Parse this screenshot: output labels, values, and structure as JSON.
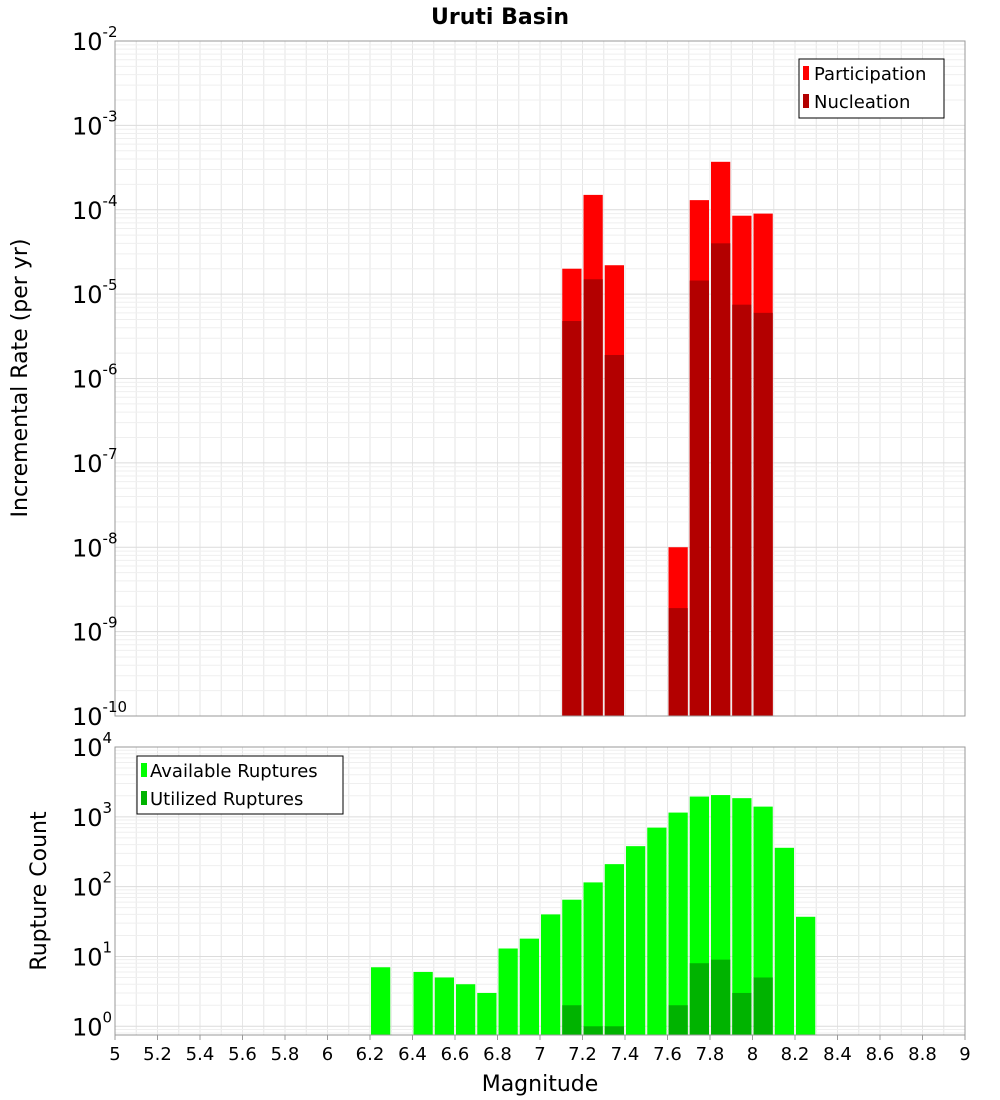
{
  "title": "Uruti Basin",
  "chart_data": [
    {
      "type": "bar",
      "ylabel": "Incremental Rate (per yr)",
      "yscale": "log",
      "ylim": [
        1e-10,
        0.01
      ],
      "xlim": [
        5,
        9
      ],
      "grid": true,
      "legend_position": "top-right",
      "y_ticks": [
        {
          "base": "10",
          "exp": "-10"
        },
        {
          "base": "10",
          "exp": "-9"
        },
        {
          "base": "10",
          "exp": "-8"
        },
        {
          "base": "10",
          "exp": "-7"
        },
        {
          "base": "10",
          "exp": "-6"
        },
        {
          "base": "10",
          "exp": "-5"
        },
        {
          "base": "10",
          "exp": "-4"
        },
        {
          "base": "10",
          "exp": "-3"
        },
        {
          "base": "10",
          "exp": "-2"
        }
      ],
      "series": [
        {
          "name": "Participation",
          "color": "#ff0000",
          "x": [
            7.15,
            7.25,
            7.35,
            7.65,
            7.75,
            7.85,
            7.95,
            8.05
          ],
          "values": [
            2e-05,
            0.00015,
            2.2e-05,
            1e-08,
            0.00013,
            0.00037,
            8.5e-05,
            9e-05
          ]
        },
        {
          "name": "Nucleation",
          "color": "#b30000",
          "x": [
            7.15,
            7.25,
            7.35,
            7.65,
            7.75,
            7.85,
            7.95,
            8.05
          ],
          "values": [
            4.8e-06,
            1.5e-05,
            1.9e-06,
            1.9e-09,
            1.45e-05,
            4e-05,
            7.5e-06,
            6e-06
          ]
        }
      ]
    },
    {
      "type": "bar",
      "xlabel": "Magnitude",
      "ylabel": "Rupture Count",
      "yscale": "log",
      "ylim": [
        0.75,
        10000
      ],
      "xlim": [
        5,
        9
      ],
      "grid": true,
      "legend_position": "top-left",
      "y_ticks": [
        {
          "base": "10",
          "exp": "0"
        },
        {
          "base": "10",
          "exp": "1"
        },
        {
          "base": "10",
          "exp": "2"
        },
        {
          "base": "10",
          "exp": "3"
        },
        {
          "base": "10",
          "exp": "4"
        }
      ],
      "x_ticks": [
        "5",
        "5.2",
        "5.4",
        "5.6",
        "5.8",
        "6",
        "6.2",
        "6.4",
        "6.6",
        "6.8",
        "7",
        "7.2",
        "7.4",
        "7.6",
        "7.8",
        "8",
        "8.2",
        "8.4",
        "8.6",
        "8.8",
        "9"
      ],
      "series": [
        {
          "name": "Available Ruptures",
          "color": "#00ff00",
          "x": [
            6.25,
            6.45,
            6.55,
            6.65,
            6.75,
            6.85,
            6.95,
            7.05,
            7.15,
            7.25,
            7.35,
            7.45,
            7.55,
            7.65,
            7.75,
            7.85,
            7.95,
            8.05,
            8.15,
            8.25
          ],
          "values": [
            7,
            6,
            5,
            4,
            3,
            13,
            18,
            40,
            65,
            115,
            210,
            380,
            700,
            1150,
            1950,
            2050,
            1850,
            1400,
            360,
            37
          ]
        },
        {
          "name": "Utilized Ruptures",
          "color": "#00b300",
          "x": [
            7.15,
            7.25,
            7.35,
            7.65,
            7.75,
            7.85,
            7.95,
            8.05
          ],
          "values": [
            2,
            1,
            1,
            2,
            8,
            9,
            3,
            5
          ]
        }
      ]
    }
  ]
}
